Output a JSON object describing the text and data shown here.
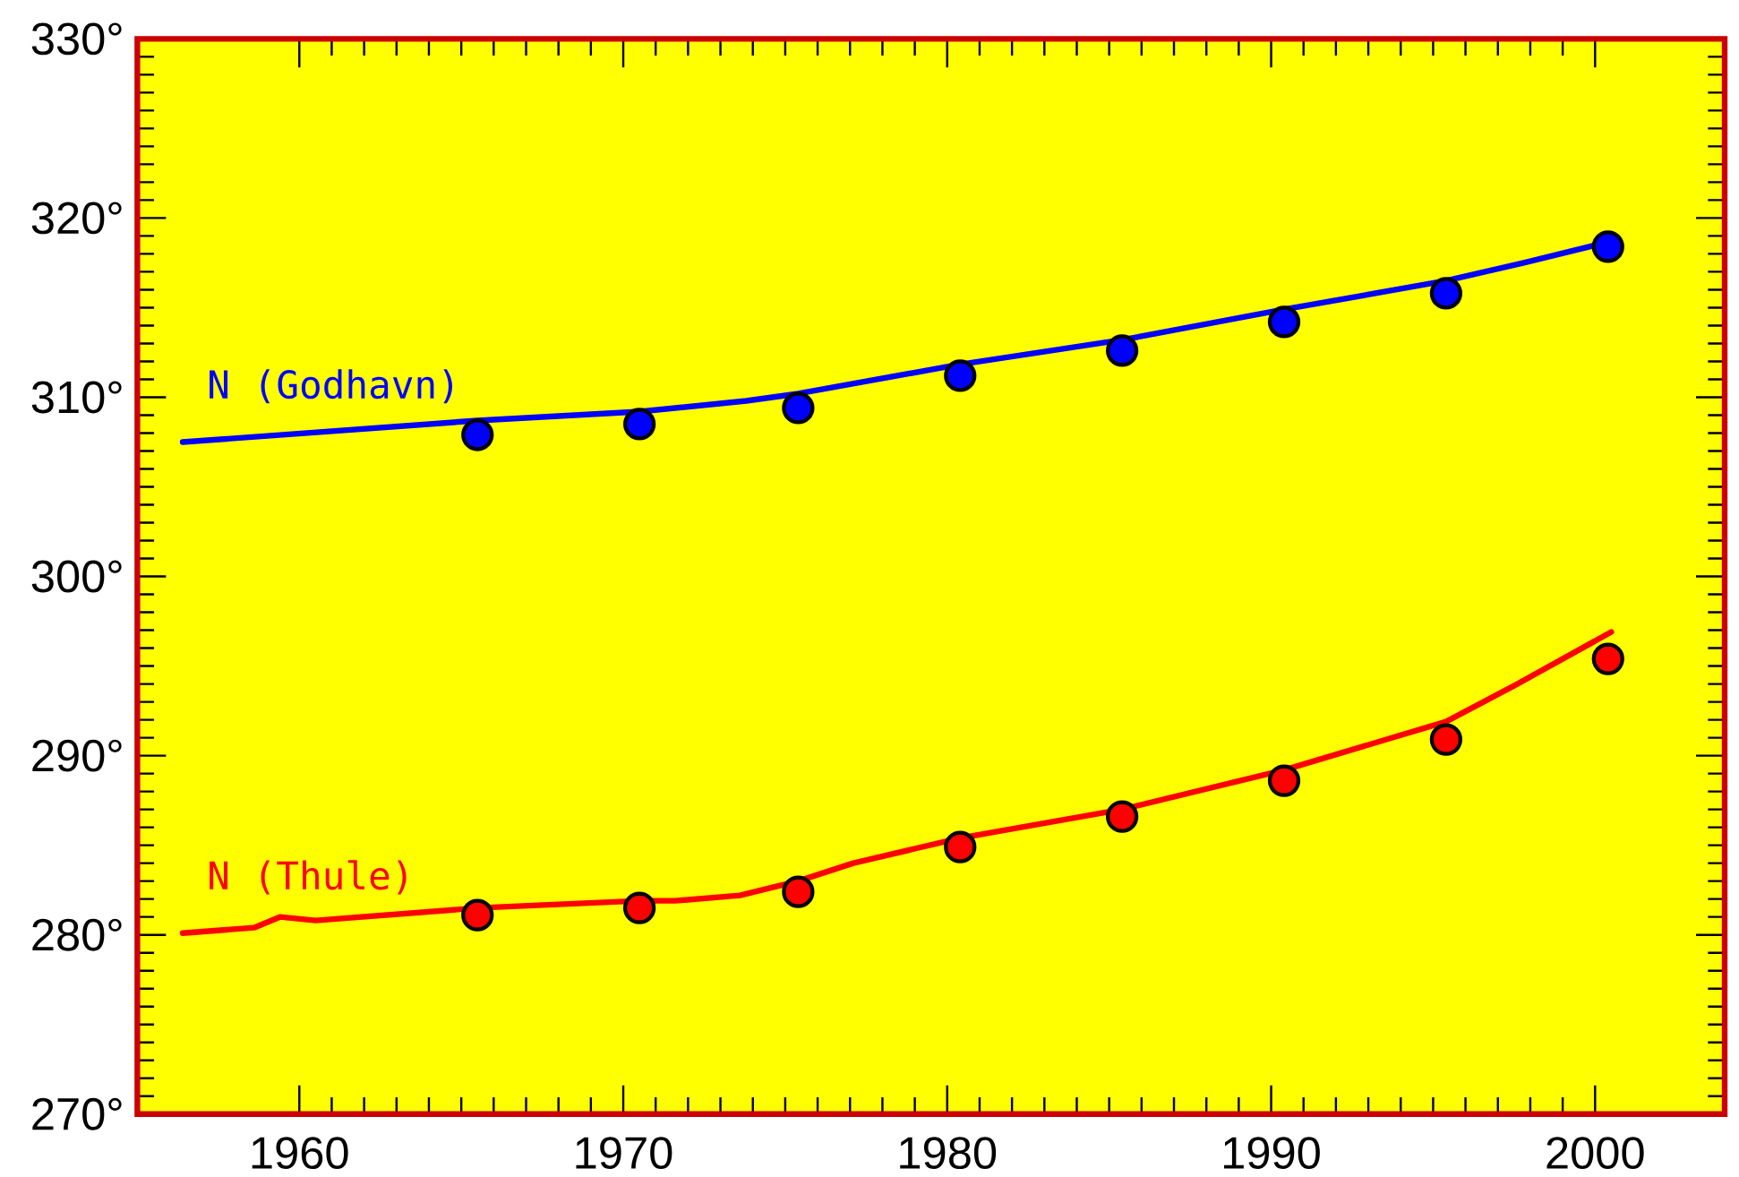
{
  "chart_data": {
    "type": "line",
    "xlim": [
      1955,
      2004
    ],
    "xticks": [
      1960,
      1970,
      1980,
      1990,
      2000
    ],
    "ylim": [
      270,
      330
    ],
    "yticks": [
      {
        "value": 270,
        "label": "270°"
      },
      {
        "value": 280,
        "label": "280°"
      },
      {
        "value": 290,
        "label": "290°"
      },
      {
        "value": 300,
        "label": "300°"
      },
      {
        "value": 310,
        "label": "310°"
      },
      {
        "value": 320,
        "label": "320°"
      },
      {
        "value": 330,
        "label": "330°"
      }
    ],
    "series": [
      {
        "name": "N (Godhavn)",
        "color": "#0000ff",
        "x": [
          1956.4,
          1965.5,
          1970.5,
          1973.8,
          1975.4,
          1980.3,
          1985.4,
          1990.4,
          1995.4,
          1997.8,
          2000.5
        ],
        "values": [
          307.5,
          308.7,
          309.2,
          309.8,
          310.2,
          311.8,
          313.2,
          314.9,
          316.5,
          317.5,
          318.7
        ]
      },
      {
        "type": "scatter",
        "marker": "circle",
        "color": "#0000ff",
        "x": [
          1965.5,
          1970.5,
          1975.4,
          1980.4,
          1985.4,
          1990.4,
          1995.4,
          2000.4
        ],
        "values": [
          307.9,
          308.5,
          309.4,
          311.2,
          312.6,
          314.2,
          315.8,
          318.4
        ]
      },
      {
        "name": "N (Thule)",
        "color": "#ff0000",
        "x": [
          1956.4,
          1958.6,
          1959.4,
          1960.5,
          1965.5,
          1970.5,
          1971.6,
          1973.6,
          1975.4,
          1977.1,
          1980.4,
          1985.4,
          1990.4,
          1995.4,
          1997.6,
          2000.5
        ],
        "values": [
          280.1,
          280.4,
          281.0,
          280.8,
          281.5,
          281.9,
          281.9,
          282.2,
          283.0,
          284.0,
          285.4,
          287.0,
          289.2,
          291.9,
          294.0,
          296.9
        ]
      },
      {
        "type": "scatter",
        "marker": "circle",
        "color": "#ff0000",
        "x": [
          1965.5,
          1970.5,
          1975.4,
          1980.4,
          1985.4,
          1990.4,
          1995.4,
          2000.4
        ],
        "values": [
          281.1,
          281.5,
          282.4,
          284.9,
          286.6,
          288.6,
          290.9,
          295.4
        ]
      }
    ]
  }
}
